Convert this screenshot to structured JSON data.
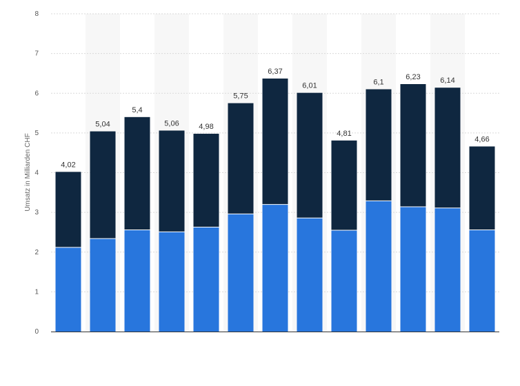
{
  "chart_data": {
    "type": "bar",
    "stacked": true,
    "categories": [
      "",
      "",
      "",
      "",
      "",
      "",
      "",
      "",
      "",
      "",
      "",
      "",
      ""
    ],
    "series": [
      {
        "values": [
          2.12,
          2.34,
          2.56,
          2.51,
          2.63,
          2.96,
          3.2,
          2.86,
          2.55,
          3.29,
          3.14,
          3.11,
          2.56
        ]
      },
      {
        "values": [
          1.9,
          2.7,
          2.84,
          2.55,
          2.35,
          2.79,
          3.17,
          3.15,
          2.26,
          2.81,
          3.09,
          3.03,
          2.1
        ]
      }
    ],
    "totals": [
      4.02,
      5.04,
      5.4,
      5.06,
      4.98,
      5.75,
      6.37,
      6.01,
      4.81,
      6.1,
      6.23,
      6.14,
      4.66
    ],
    "total_labels": [
      "4,02",
      "5,04",
      "5,4",
      "5,06",
      "4,98",
      "5,75",
      "6,37",
      "6,01",
      "4,81",
      "6,1",
      "6,23",
      "6,14",
      "4,66"
    ],
    "ylabel": "Umsatz in Milliarden CHF",
    "ylim": [
      0,
      8
    ],
    "yticks": [
      0,
      1,
      2,
      3,
      4,
      5,
      6,
      7,
      8
    ],
    "grid": true,
    "colors": {
      "series_1": "#2876dd",
      "series_2": "#0f2740",
      "grid": "#d9d9d9",
      "band": "#f7f7f7",
      "axis": "#333333"
    }
  }
}
